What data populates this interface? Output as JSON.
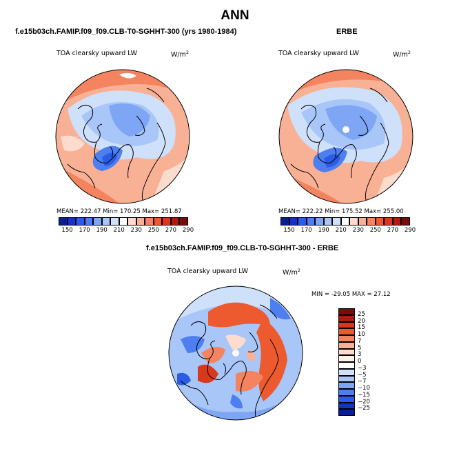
{
  "title": "ANN",
  "panels": [
    {
      "case_title": "f.e15b03ch.FAMIP.f09_f09.CLB-T0-SGHHT-300 (yrs 1980-1984)",
      "var_title": "TOA clearsky upward LW",
      "units": "W/m",
      "units_exp": "2",
      "stats": "MEAN= 222.47   Min= 170.25   Max= 251.87"
    },
    {
      "case_title": "ERBE",
      "var_title": "TOA clearsky upward LW",
      "units": "W/m",
      "units_exp": "2",
      "stats": "MEAN= 222.22   Min= 175.52   Max= 255.00"
    }
  ],
  "diff_panel": {
    "case_title": "f.e15b03ch.FAMIP.f09_f09.CLB-T0-SGHHT-300 - ERBE",
    "var_title": "TOA clearsky upward LW",
    "units": "W/m",
    "units_exp": "2",
    "stats": "MIN = -29.05  MAX =  27.12"
  },
  "colorbar_abs": {
    "labels": [
      "150",
      "170",
      "190",
      "210",
      "230",
      "250",
      "270",
      "290"
    ],
    "colors": [
      "#0a1f8f",
      "#1431c8",
      "#2a5ce6",
      "#4d7ff0",
      "#7ea6f4",
      "#a8c6f7",
      "#cfe0fa",
      "#ffffff",
      "#fddccd",
      "#f9b196",
      "#f3845f",
      "#ed5a30",
      "#d8391c",
      "#b01b0f",
      "#7a0b07"
    ]
  },
  "colorbar_diff": {
    "labels": [
      "25",
      "20",
      "15",
      "10",
      "7",
      "5",
      "3",
      "0",
      "−3",
      "−5",
      "−7",
      "−10",
      "−15",
      "−20",
      "−25"
    ],
    "colors": [
      "#7a0b07",
      "#b01b0f",
      "#d8391c",
      "#ed5a30",
      "#f3845f",
      "#f9b196",
      "#fddccd",
      "#fff1e8",
      "#ffffff",
      "#cfe0fa",
      "#a8c6f7",
      "#7ea6f4",
      "#4d7ff0",
      "#2a5ce6",
      "#1431c8",
      "#0a1f8f"
    ]
  },
  "colors": {
    "land_outline": "#000000",
    "pole_marker": "#ffffff"
  }
}
